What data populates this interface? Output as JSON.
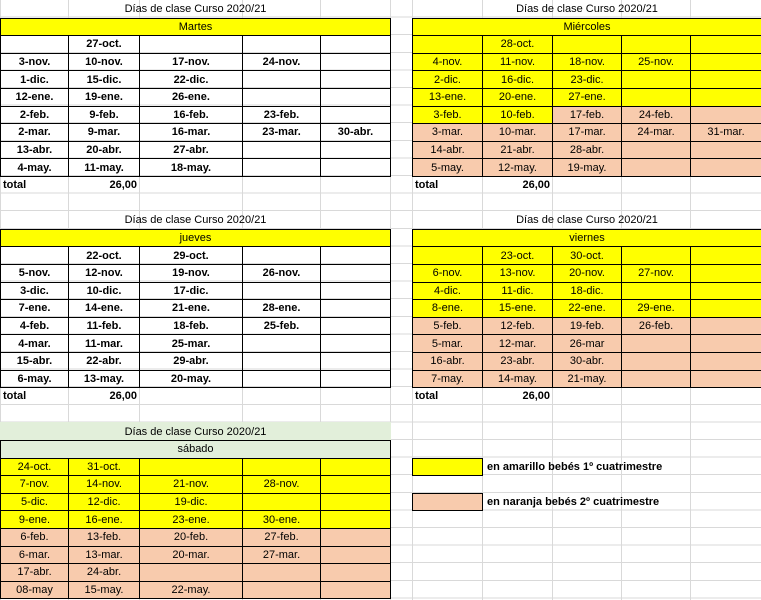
{
  "blocks": [
    {
      "title": "Días de clase Curso 2020/21",
      "day": "Martes",
      "rows": [
        [
          null,
          "27-oct.",
          null,
          null,
          null
        ],
        [
          "3-nov.",
          "10-nov.",
          "17-nov.",
          "24-nov.",
          null
        ],
        [
          "1-dic.",
          "15-dic.",
          "22-dic.",
          null,
          null
        ],
        [
          "12-ene.",
          "19-ene.",
          "26-ene.",
          null,
          null
        ],
        [
          "2-feb.",
          "9-feb.",
          "16-feb.",
          "23-feb.",
          null
        ],
        [
          "2-mar.",
          "9-mar.",
          "16-mar.",
          "23-mar.",
          "30-abr."
        ],
        [
          "13-abr.",
          "20-abr.",
          "27-abr.",
          null,
          null
        ],
        [
          "4-may.",
          "11-may.",
          "18-may.",
          null,
          null
        ]
      ],
      "total_label": "total",
      "total": "26,00"
    },
    {
      "title": "Días de clase Curso 2020/21",
      "day": "Miércoles",
      "rows": [
        [
          null,
          "28-oct.",
          null,
          null,
          null
        ],
        [
          "4-nov.",
          "11-nov.",
          "18-nov.",
          "25-nov.",
          null
        ],
        [
          "2-dic.",
          "16-dic.",
          "23-dic.",
          null,
          null
        ],
        [
          "13-ene.",
          "20-ene.",
          "27-ene.",
          null,
          null
        ],
        [
          "3-feb.",
          "10-feb.",
          "17-feb.",
          "24-feb.",
          null
        ],
        [
          "3-mar.",
          "10-mar.",
          "17-mar.",
          "24-mar.",
          "31-mar."
        ],
        [
          "14-abr.",
          "21-abr.",
          "28-abr.",
          null,
          null
        ],
        [
          "5-may.",
          "12-may.",
          "19-may.",
          null,
          null
        ]
      ],
      "total_label": "total",
      "total": "26,00"
    },
    {
      "title": "Días de clase Curso 2020/21",
      "day": "jueves",
      "rows": [
        [
          null,
          "22-oct.",
          "29-oct.",
          null,
          null
        ],
        [
          "5-nov.",
          "12-nov.",
          "19-nov.",
          "26-nov.",
          null
        ],
        [
          "3-dic.",
          "10-dic.",
          "17-dic.",
          null,
          null
        ],
        [
          "7-ene.",
          "14-ene.",
          "21-ene.",
          "28-ene.",
          null
        ],
        [
          "4-feb.",
          "11-feb.",
          "18-feb.",
          "25-feb.",
          null
        ],
        [
          "4-mar.",
          "11-mar.",
          "25-mar.",
          null,
          null
        ],
        [
          "15-abr.",
          "22-abr.",
          "29-abr.",
          null,
          null
        ],
        [
          "6-may.",
          "13-may.",
          "20-may.",
          null,
          null
        ]
      ],
      "total_label": "total",
      "total": "26,00"
    },
    {
      "title": "Días de clase Curso 2020/21",
      "day": "viernes",
      "rows": [
        [
          null,
          "23-oct.",
          "30-oct.",
          null,
          null
        ],
        [
          "6-nov.",
          "13-nov.",
          "20-nov.",
          "27-nov.",
          null
        ],
        [
          "4-dic.",
          "11-dic.",
          "18-dic.",
          null,
          null
        ],
        [
          "8-ene.",
          "15-ene.",
          "22-ene.",
          "29-ene.",
          null
        ],
        [
          "5-feb.",
          "12-feb.",
          "19-feb.",
          "26-feb.",
          null
        ],
        [
          "5-mar.",
          "12-mar.",
          "26-mar",
          null,
          null
        ],
        [
          "16-abr.",
          "23-abr.",
          "30-abr.",
          null,
          null
        ],
        [
          "7-may.",
          "14-may.",
          "21-may.",
          null,
          null
        ]
      ],
      "total_label": "total",
      "total": "26,00"
    },
    {
      "title": "Días de clase Curso 2020/21",
      "day": "sábado",
      "rows": [
        [
          "24-oct.",
          "31-oct.",
          null,
          null,
          null
        ],
        [
          "7-nov.",
          "14-nov.",
          "21-nov.",
          "28-nov.",
          null
        ],
        [
          "5-dic.",
          "12-dic.",
          "19-dic.",
          null,
          null
        ],
        [
          "9-ene.",
          "16-ene.",
          "23-ene.",
          "30-ene.",
          null
        ],
        [
          "6-feb.",
          "13-feb.",
          "20-feb.",
          "27-feb.",
          null
        ],
        [
          "6-mar.",
          "13-mar.",
          "20-mar.",
          "27-mar.",
          null
        ],
        [
          "17-abr.",
          "24-abr.",
          null,
          null,
          null
        ],
        [
          "08-may",
          "15-may.",
          "22-may.",
          null,
          null
        ]
      ]
    }
  ],
  "legend": [
    {
      "label": "en amarillo bebés 1º cuatrimestre"
    },
    {
      "label": "en naranja bebés 2º cuatrimestre"
    }
  ]
}
